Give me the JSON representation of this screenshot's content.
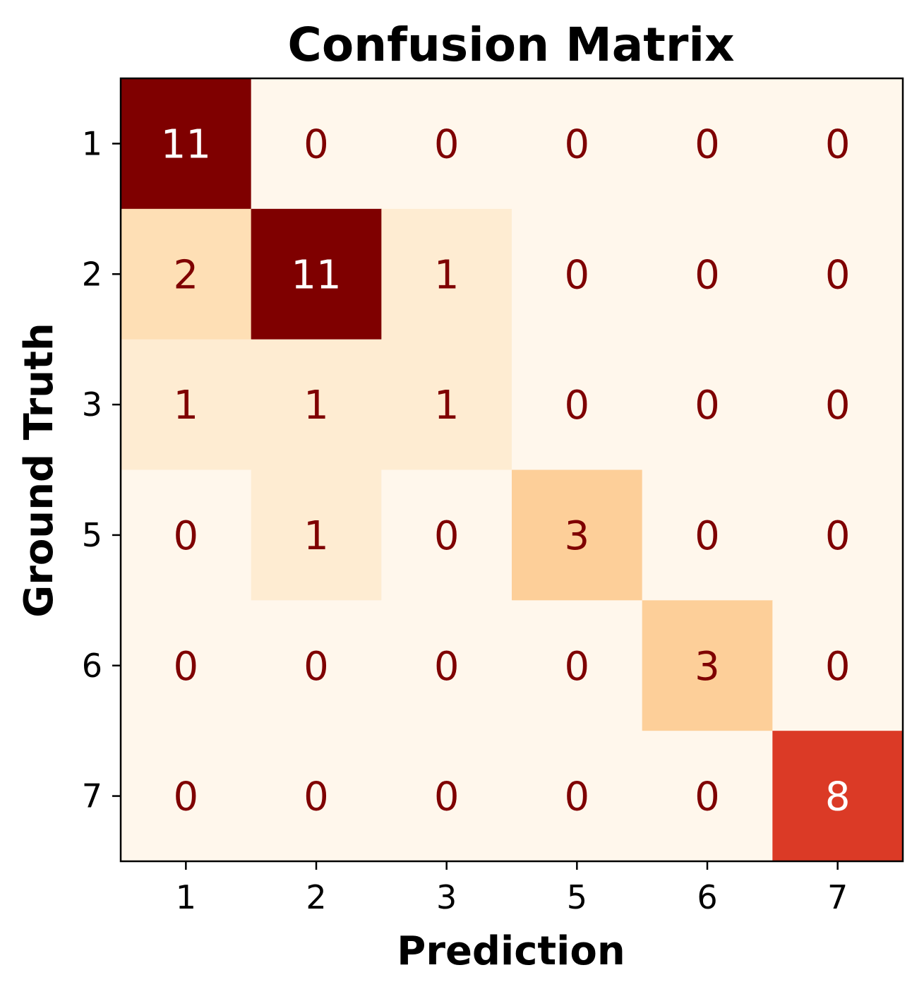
{
  "chart_data": {
    "type": "heatmap",
    "title": "Confusion Matrix",
    "xlabel": "Prediction",
    "ylabel": "Ground Truth",
    "x_categories": [
      "1",
      "2",
      "3",
      "5",
      "6",
      "7"
    ],
    "y_categories": [
      "1",
      "2",
      "3",
      "5",
      "6",
      "7"
    ],
    "matrix": [
      [
        11,
        0,
        0,
        0,
        0,
        0
      ],
      [
        2,
        11,
        1,
        0,
        0,
        0
      ],
      [
        1,
        1,
        1,
        0,
        0,
        0
      ],
      [
        0,
        1,
        0,
        3,
        0,
        0
      ],
      [
        0,
        0,
        0,
        0,
        3,
        0
      ],
      [
        0,
        0,
        0,
        0,
        0,
        8
      ]
    ],
    "colormap": "OrRd",
    "value_range": [
      0,
      11
    ],
    "colorbar": false,
    "grid": false,
    "colors": {
      "low": "#fff7ec",
      "high": "#7f0000",
      "dark_text": "#7f0000",
      "light_text": "#ffffff"
    }
  }
}
